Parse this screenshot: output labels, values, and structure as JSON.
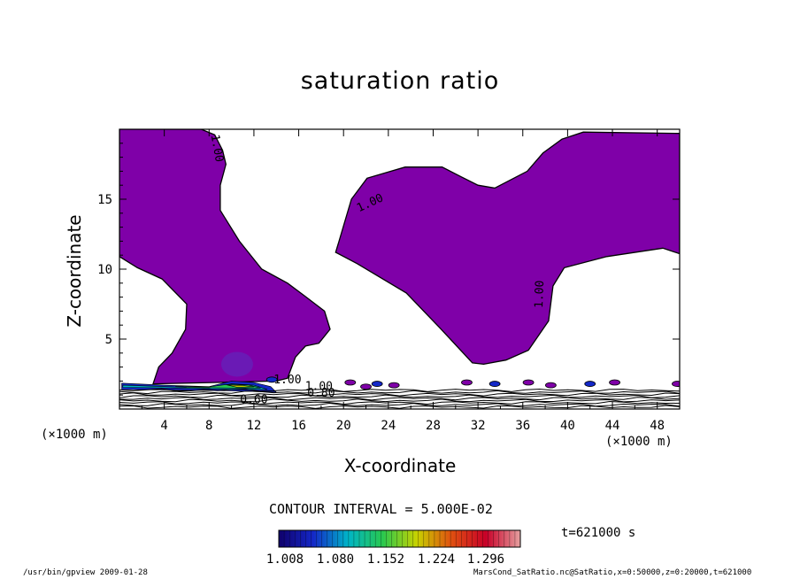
{
  "chart_data": {
    "type": "contour",
    "title": "saturation ratio",
    "xlabel": "X-coordinate",
    "ylabel": "Z-coordinate",
    "x_unit_label": "(×1000 m)",
    "xlim": [
      0,
      50
    ],
    "ylim": [
      0,
      20
    ],
    "x_ticks": [
      4,
      8,
      12,
      16,
      20,
      24,
      28,
      32,
      36,
      40,
      44,
      48
    ],
    "y_ticks": [
      5,
      10,
      15
    ],
    "contour_interval_text": "CONTOUR INTERVAL = 5.000E-02",
    "contour_interval": 0.05,
    "contour_labels": [
      "1.00",
      "1.00",
      "1.00",
      "1.00",
      "1.00",
      "0.60",
      "0.80"
    ],
    "colorbar_ticks": [
      "1.008",
      "1.080",
      "1.152",
      "1.224",
      "1.296"
    ],
    "colorbar_range": [
      1.008,
      1.296
    ],
    "time_label": "t=621000 s",
    "supersaturated_fill_color": "#7f00a8",
    "colormap_stops": [
      "#10006b",
      "#1428c8",
      "#00b4c8",
      "#28c850",
      "#c8d200",
      "#e05010",
      "#c80028",
      "#e6a0a0"
    ],
    "regions": [
      {
        "name": "left supersaturated column",
        "outline": [
          [
            0,
            20
          ],
          [
            7.3,
            20
          ],
          [
            8.5,
            19.6
          ],
          [
            9.2,
            18.5
          ],
          [
            9.5,
            17.5
          ],
          [
            9,
            16
          ],
          [
            9,
            14.2
          ],
          [
            10.7,
            12
          ],
          [
            12.7,
            10
          ],
          [
            15,
            9
          ],
          [
            16.5,
            8.1
          ],
          [
            18.3,
            7
          ],
          [
            18.8,
            5.7
          ],
          [
            17.8,
            4.7
          ],
          [
            16.6,
            4.5
          ],
          [
            15.7,
            3.7
          ],
          [
            15,
            2.2
          ],
          [
            14,
            2
          ],
          [
            3,
            1.8
          ],
          [
            3.5,
            3
          ],
          [
            4.7,
            4
          ],
          [
            5.9,
            5.7
          ],
          [
            6,
            7.5
          ],
          [
            3.8,
            9.3
          ],
          [
            1.6,
            10.1
          ],
          [
            0,
            10.9
          ]
        ]
      },
      {
        "name": "right supersaturated dome",
        "outline": [
          [
            19.3,
            11.2
          ],
          [
            19.6,
            12
          ],
          [
            20.7,
            15
          ],
          [
            22.1,
            16.5
          ],
          [
            25.5,
            17.3
          ],
          [
            28.8,
            17.3
          ],
          [
            30.5,
            16.6
          ],
          [
            32,
            16
          ],
          [
            33.5,
            15.8
          ],
          [
            36.4,
            17
          ],
          [
            37.8,
            18.3
          ],
          [
            39.5,
            19.3
          ],
          [
            41.4,
            19.8
          ],
          [
            50,
            19.7
          ],
          [
            50,
            11.1
          ],
          [
            48.5,
            11.5
          ],
          [
            43.5,
            10.9
          ],
          [
            39.7,
            10.1
          ],
          [
            38.7,
            8.8
          ],
          [
            38.3,
            6.3
          ],
          [
            36.5,
            4.2
          ],
          [
            34.5,
            3.5
          ],
          [
            32.5,
            3.2
          ],
          [
            31.5,
            3.3
          ],
          [
            28.6,
            5.8
          ],
          [
            25.6,
            8.3
          ],
          [
            21.2,
            10.4
          ]
        ]
      }
    ]
  },
  "footer": {
    "left": "/usr/bin/gpview   2009-01-28",
    "right": "MarsCond_SatRatio.nc@SatRatio,x=0:50000,z=0:20000,t=621000"
  }
}
